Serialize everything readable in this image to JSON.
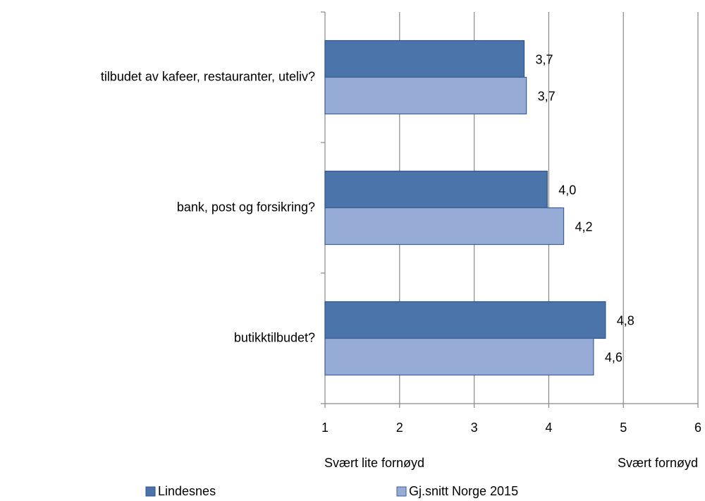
{
  "chart_data": {
    "type": "bar",
    "orientation": "horizontal",
    "categories": [
      "tilbudet av kafeer, restauranter, uteliv?",
      "bank, post og forsikring?",
      "butikktilbudet?"
    ],
    "series": [
      {
        "name": "Lindesnes",
        "color": "#4a74aa",
        "values": [
          3.67,
          3.98,
          4.76
        ],
        "value_labels": [
          "3,7",
          "4,0",
          "4,8"
        ]
      },
      {
        "name": "Gj.snitt Norge 2015",
        "color": "#96acd6",
        "values": [
          3.7,
          4.2,
          4.6
        ],
        "value_labels": [
          "3,7",
          "4,2",
          "4,6"
        ]
      }
    ],
    "xlim": [
      1,
      6
    ],
    "xticks": [
      1,
      2,
      3,
      4,
      5,
      6
    ],
    "grid": true,
    "annotations": [
      "Svært lite fornøyd",
      "Svært fornøyd"
    ],
    "legend": "bottom"
  }
}
